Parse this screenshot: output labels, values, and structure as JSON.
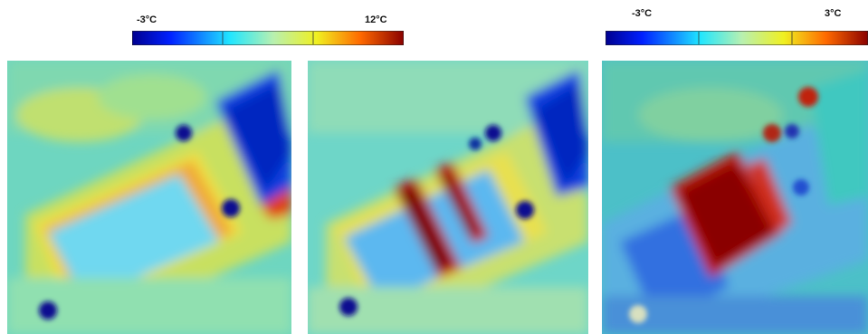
{
  "colorbars": [
    {
      "min_label": "-3°C",
      "max_label": "12°C"
    },
    {
      "min_label": "-3°C",
      "max_label": "3°C"
    }
  ],
  "panels": [
    {
      "name": "panel-1",
      "content": "false-color thermal overlay of rooftop, cool (blue) building at top-right, cool roof sections"
    },
    {
      "name": "panel-2",
      "content": "false-color thermal overlay, hot red stripes on central roof"
    },
    {
      "name": "panel-3",
      "content": "false-color thermal difference overlay, large red area on central roof"
    }
  ],
  "colors": {
    "jet_dark_blue": "#00008f",
    "jet_blue": "#0050ff",
    "jet_cyan": "#20e6ff",
    "jet_yellow": "#f0f020",
    "jet_red": "#ff2a00",
    "jet_dark_red": "#8a0000"
  }
}
